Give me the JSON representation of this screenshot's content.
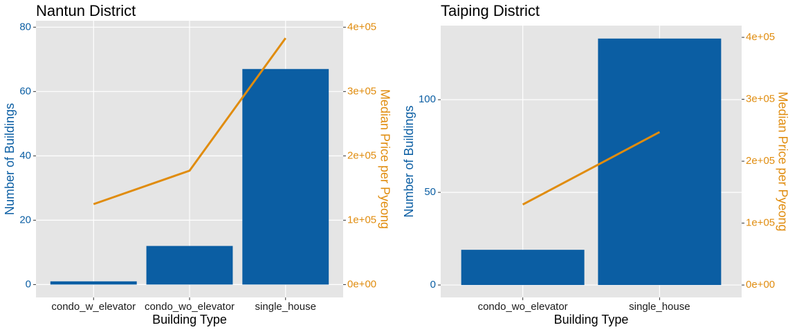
{
  "chart_data": [
    {
      "type": "combo",
      "title": "Nantun District",
      "x_label": "Building Type",
      "y_label": "Number of Buildings",
      "y2_label": "Median Price per Pyeong",
      "categories": [
        "condo_w_elevator",
        "condo_wo_elevator",
        "single_house"
      ],
      "series": [
        {
          "type": "bar",
          "color": "#0b5ea3",
          "values": [
            1,
            12,
            67
          ]
        },
        {
          "type": "line",
          "color": "#e08c0e",
          "axis": "y2",
          "values": [
            125000,
            177000,
            383000
          ]
        }
      ],
      "ylim": [
        -4,
        82
      ],
      "yticks": [
        0,
        20,
        40,
        60,
        80
      ],
      "y2lim": [
        -20000,
        410000
      ],
      "y2ticks": [
        {
          "value": 0,
          "label": "0e+00"
        },
        {
          "value": 100000,
          "label": "1e+05"
        },
        {
          "value": 200000,
          "label": "2e+05"
        },
        {
          "value": 300000,
          "label": "3e+05"
        },
        {
          "value": 400000,
          "label": "4e+05"
        }
      ],
      "grid": true
    },
    {
      "type": "combo",
      "title": "Taiping District",
      "x_label": "Building Type",
      "y_label": "Number of Buildings",
      "y2_label": "Median Price per Pyeong",
      "categories": [
        "condo_wo_elevator",
        "single_house"
      ],
      "series": [
        {
          "type": "bar",
          "color": "#0b5ea3",
          "values": [
            19,
            133
          ]
        },
        {
          "type": "line",
          "color": "#e08c0e",
          "axis": "y2",
          "values": [
            130000,
            247000
          ]
        }
      ],
      "ylim": [
        -6.7,
        140
      ],
      "yticks": [
        0,
        50,
        100
      ],
      "y2lim": [
        -20000,
        419000
      ],
      "y2ticks": [
        {
          "value": 0,
          "label": "0e+00"
        },
        {
          "value": 100000,
          "label": "1e+05"
        },
        {
          "value": 200000,
          "label": "2e+05"
        },
        {
          "value": 300000,
          "label": "3e+05"
        },
        {
          "value": 400000,
          "label": "4e+05"
        }
      ],
      "grid": true
    }
  ]
}
